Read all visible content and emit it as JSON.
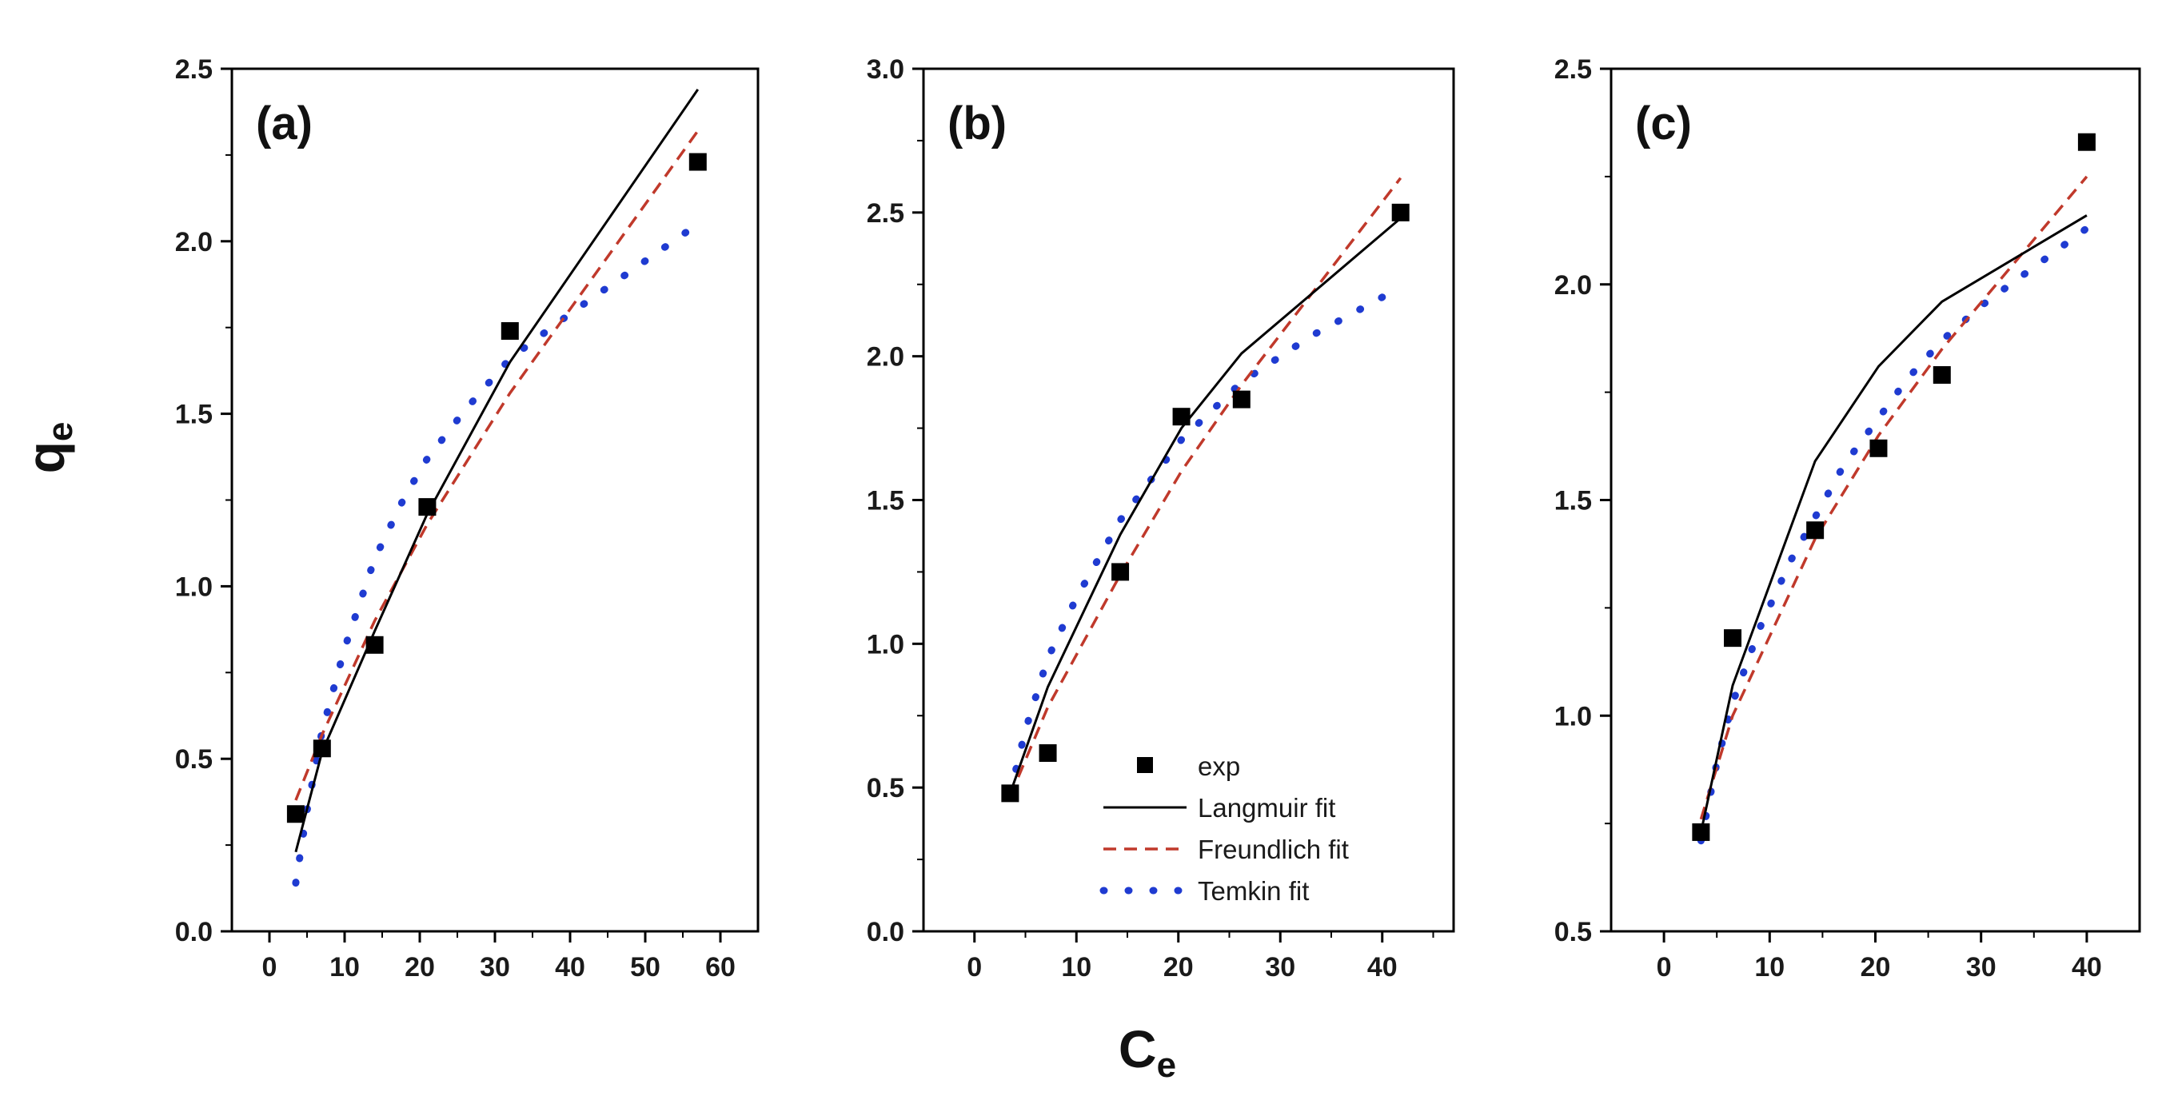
{
  "figure": {
    "ylabel_main": "q",
    "ylabel_sub": "e",
    "xlabel_main": "C",
    "xlabel_sub": "e",
    "legend_panel": "b",
    "colors": {
      "exp": "#000000",
      "langmuir": "#000000",
      "freundlich": "#c0392b",
      "temkin": "#1f3bd1",
      "axis": "#000000"
    }
  },
  "chart_data": [
    {
      "id": "a",
      "type": "scatter",
      "title": "(a)",
      "xlabel": "Ce",
      "ylabel": "qe",
      "xlim": [
        -5,
        65
      ],
      "ylim": [
        0,
        2.5
      ],
      "xticks": [
        0,
        10,
        20,
        30,
        40,
        50,
        60
      ],
      "yticks": [
        0.0,
        0.5,
        1.0,
        1.5,
        2.0,
        2.5
      ],
      "xtick_labels": [
        "0",
        "10",
        "20",
        "30",
        "40",
        "50",
        "60"
      ],
      "ytick_labels": [
        "0.0",
        "0.5",
        "1.0",
        "1.5",
        "2.0",
        "2.5"
      ],
      "series": [
        {
          "name": "exp",
          "kind": "marker",
          "x": [
            3.5,
            7,
            14,
            21,
            32,
            57
          ],
          "y": [
            0.34,
            0.53,
            0.83,
            1.23,
            1.74,
            2.23
          ]
        },
        {
          "name": "Langmuir fit",
          "kind": "solid",
          "x": [
            3.5,
            7,
            14,
            21,
            32,
            57
          ],
          "y": [
            0.23,
            0.52,
            0.87,
            1.21,
            1.65,
            2.44
          ]
        },
        {
          "name": "Freundlich fit",
          "kind": "dashed",
          "x": [
            3.5,
            7,
            14,
            21,
            32,
            57
          ],
          "y": [
            0.38,
            0.57,
            0.9,
            1.18,
            1.56,
            2.32
          ]
        },
        {
          "name": "Temkin fit",
          "kind": "dotted",
          "x": [
            3.5,
            5,
            7,
            10,
            14,
            18,
            21,
            26,
            32,
            40,
            57
          ],
          "y": [
            0.14,
            0.35,
            0.58,
            0.82,
            1.08,
            1.26,
            1.37,
            1.51,
            1.66,
            1.79,
            2.05
          ]
        }
      ]
    },
    {
      "id": "b",
      "type": "scatter",
      "title": "(b)",
      "xlabel": "Ce",
      "ylabel": "qe",
      "xlim": [
        -5,
        47
      ],
      "ylim": [
        0,
        3.0
      ],
      "xticks": [
        0,
        10,
        20,
        30,
        40
      ],
      "yticks": [
        0.0,
        0.5,
        1.0,
        1.5,
        2.0,
        2.5,
        3.0
      ],
      "xtick_labels": [
        "0",
        "10",
        "20",
        "30",
        "40"
      ],
      "ytick_labels": [
        "0.0",
        "0.5",
        "1.0",
        "1.5",
        "2.0",
        "2.5",
        "3.0"
      ],
      "series": [
        {
          "name": "exp",
          "kind": "marker",
          "x": [
            3.5,
            7.2,
            14.3,
            20.3,
            26.2,
            41.8
          ],
          "y": [
            0.48,
            0.62,
            1.25,
            1.79,
            1.85,
            2.5
          ]
        },
        {
          "name": "Langmuir fit",
          "kind": "solid",
          "x": [
            3.5,
            7.2,
            14.3,
            20.3,
            26.2,
            41.8
          ],
          "y": [
            0.48,
            0.85,
            1.38,
            1.75,
            2.01,
            2.48
          ]
        },
        {
          "name": "Freundlich fit",
          "kind": "dashed",
          "x": [
            3.5,
            7.2,
            14.3,
            20.3,
            26.2,
            41.8
          ],
          "y": [
            0.47,
            0.78,
            1.24,
            1.6,
            1.9,
            2.62
          ]
        },
        {
          "name": "Temkin fit",
          "kind": "dotted",
          "x": [
            3.5,
            5,
            7.2,
            10,
            14.3,
            20.3,
            26.2,
            33,
            41.8
          ],
          "y": [
            0.48,
            0.7,
            0.95,
            1.16,
            1.43,
            1.71,
            1.91,
            2.07,
            2.24
          ]
        }
      ],
      "legend": {
        "position": "bottom-right",
        "entries": [
          {
            "label": "exp",
            "kind": "marker"
          },
          {
            "label": "Langmuir fit",
            "kind": "solid"
          },
          {
            "label": "Freundlich fit",
            "kind": "dashed"
          },
          {
            "label": "Temkin fit",
            "kind": "dotted"
          }
        ]
      }
    },
    {
      "id": "c",
      "type": "scatter",
      "title": "(c)",
      "xlabel": "Ce",
      "ylabel": "qe",
      "xlim": [
        -5,
        45
      ],
      "ylim": [
        0.5,
        2.5
      ],
      "xticks": [
        0,
        10,
        20,
        30,
        40
      ],
      "yticks": [
        0.5,
        1.0,
        1.5,
        2.0,
        2.5
      ],
      "xtick_labels": [
        "0",
        "10",
        "20",
        "30",
        "40"
      ],
      "ytick_labels": [
        "0.5",
        "1.0",
        "1.5",
        "2.0",
        "2.5"
      ],
      "series": [
        {
          "name": "exp",
          "kind": "marker",
          "x": [
            3.5,
            6.5,
            14.3,
            20.3,
            26.3,
            40
          ],
          "y": [
            0.73,
            1.18,
            1.43,
            1.62,
            1.79,
            2.33
          ]
        },
        {
          "name": "Langmuir fit",
          "kind": "solid",
          "x": [
            3.5,
            6.5,
            14.3,
            20.3,
            26.3,
            40
          ],
          "y": [
            0.73,
            1.07,
            1.59,
            1.81,
            1.96,
            2.16
          ]
        },
        {
          "name": "Freundlich fit",
          "kind": "dashed",
          "x": [
            3.5,
            6.5,
            14.3,
            20.3,
            26.3,
            40
          ],
          "y": [
            0.76,
            1.0,
            1.41,
            1.65,
            1.85,
            2.25
          ]
        },
        {
          "name": "Temkin fit",
          "kind": "dotted",
          "x": [
            3.5,
            5,
            6.5,
            9,
            12,
            14.3,
            17,
            20.3,
            23,
            26.3,
            30,
            35,
            40
          ],
          "y": [
            0.71,
            0.89,
            1.03,
            1.2,
            1.36,
            1.46,
            1.58,
            1.69,
            1.78,
            1.87,
            1.95,
            2.04,
            2.13
          ]
        }
      ]
    }
  ]
}
